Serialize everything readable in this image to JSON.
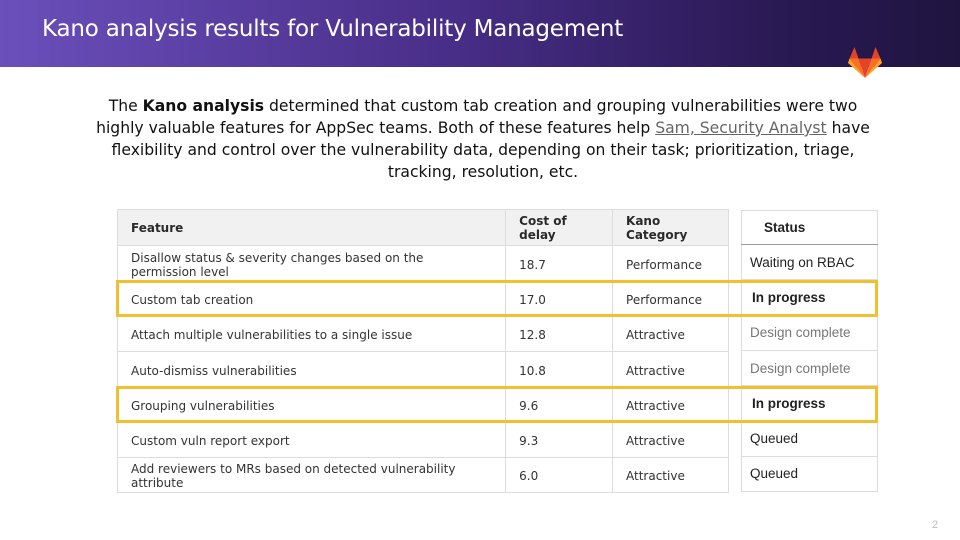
{
  "header": {
    "title": "Kano analysis results for Vulnerability Management"
  },
  "intro": {
    "prefix": "The ",
    "bold": "Kano analysis",
    "middle": " determined that custom tab creation and grouping vulnerabilities were two highly valuable features for AppSec teams. Both of these features help ",
    "link": "Sam, Security Analyst",
    "suffix": " have flexibility and control over the vulnerability data, depending on their task; prioritization, triage, tracking, resolution, etc."
  },
  "features_table": {
    "headers": [
      "Feature",
      "Cost of delay",
      "Kano Category"
    ],
    "rows": [
      [
        "Disallow status & severity changes based on the permission level",
        "18.7",
        "Performance"
      ],
      [
        "Custom tab creation",
        "17.0",
        "Performance"
      ],
      [
        "Attach multiple vulnerabilities to a single issue",
        "12.8",
        "Attractive"
      ],
      [
        "Auto-dismiss vulnerabilities",
        "10.8",
        "Attractive"
      ],
      [
        "Grouping vulnerabilities",
        "9.6",
        "Attractive"
      ],
      [
        "Custom vuln report export",
        "9.3",
        "Attractive"
      ],
      [
        "Add reviewers to MRs based on detected vulnerability attribute",
        "6.0",
        "Attractive"
      ]
    ]
  },
  "status_table": {
    "header": "Status",
    "rows": [
      "Waiting on RBAC",
      "In progress",
      "Design complete",
      "Design complete",
      "In progress",
      "Queued",
      "Queued"
    ]
  },
  "page_number": "2",
  "colors": {
    "highlight": "#f0c030",
    "header_gradient_start": "#6b4fbb",
    "header_gradient_end": "#1f1440"
  },
  "icons": {
    "logo": "gitlab-tanuki-icon"
  }
}
